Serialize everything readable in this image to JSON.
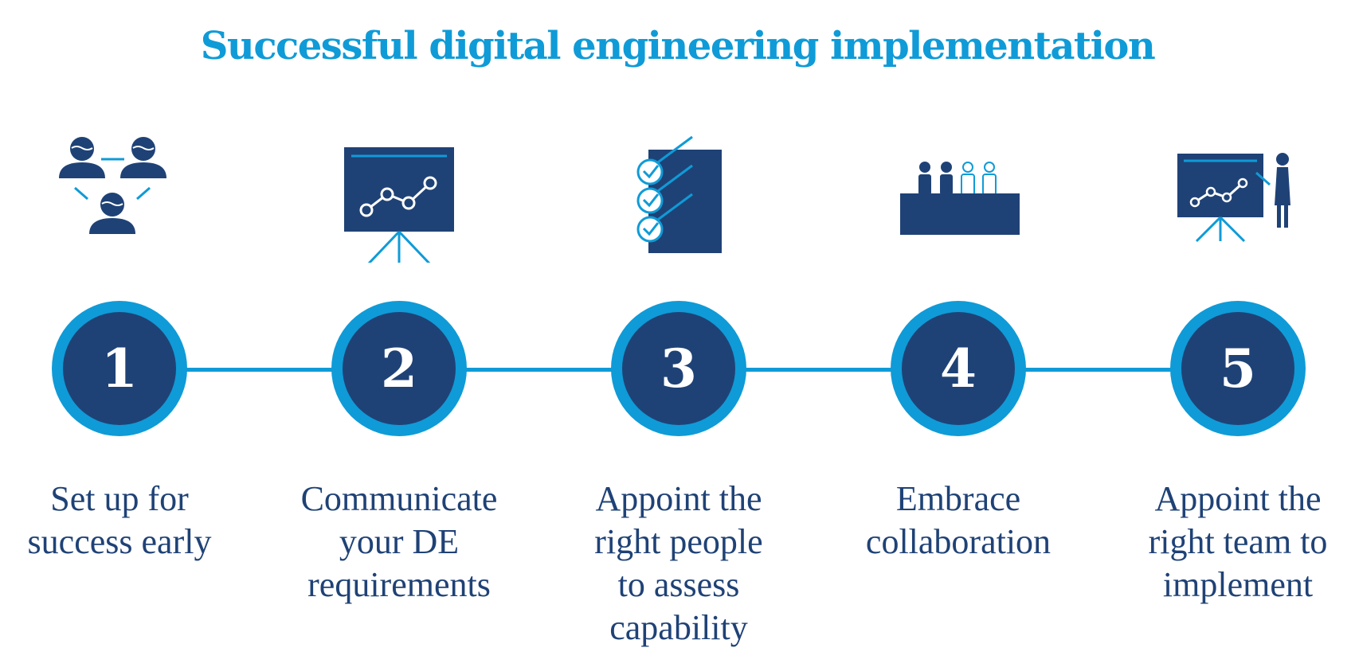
{
  "title": "Successful digital engineering implementation",
  "colors": {
    "navy": "#1f4276",
    "accent": "#0f9bd7",
    "background": "#ffffff"
  },
  "steps": [
    {
      "number": "1",
      "label": "Set up for\nsuccess early",
      "icon": "people-network-icon"
    },
    {
      "number": "2",
      "label": "Communicate\nyour DE\nrequirements",
      "icon": "presentation-chart-icon"
    },
    {
      "number": "3",
      "label": "Appoint the\nright people\nto assess\ncapability",
      "icon": "checklist-icon"
    },
    {
      "number": "4",
      "label": "Embrace\ncollaboration",
      "icon": "panel-table-icon"
    },
    {
      "number": "5",
      "label": "Appoint the\nright team to\nimplement",
      "icon": "presenter-icon"
    }
  ]
}
